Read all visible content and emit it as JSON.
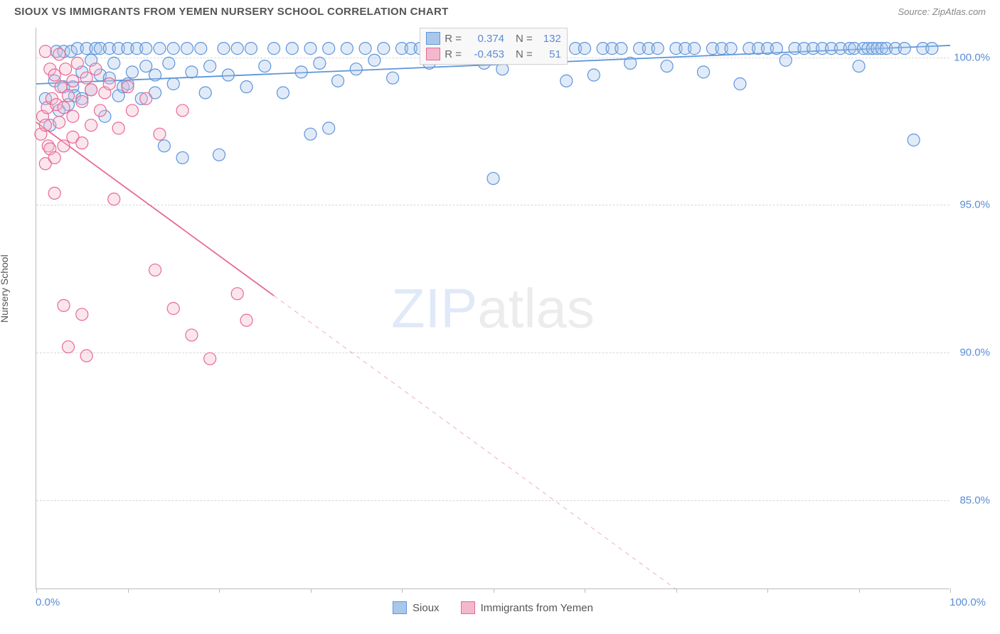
{
  "header": {
    "title": "SIOUX VS IMMIGRANTS FROM YEMEN NURSERY SCHOOL CORRELATION CHART",
    "source_label": "Source: ZipAtlas.com"
  },
  "chart": {
    "type": "scatter",
    "watermark": {
      "part1": "ZIP",
      "part2": "atlas",
      "fontsize": 78,
      "opacity": 0.18,
      "color": "#5b8cd6"
    },
    "ylabel": "Nursery School",
    "label_fontsize": 14,
    "label_color": "#555555",
    "background_color": "#ffffff",
    "grid_color": "#d8d8d8",
    "axis_color": "#bbbbbb",
    "tick_label_color": "#5b8cd6",
    "tick_label_fontsize": 15,
    "xlim": [
      0,
      100
    ],
    "ylim": [
      82,
      101
    ],
    "yticks": [
      85.0,
      90.0,
      95.0,
      100.0
    ],
    "ytick_labels": [
      "85.0%",
      "90.0%",
      "95.0%",
      "100.0%"
    ],
    "xticks": [
      0,
      10,
      20,
      30,
      40,
      50,
      60,
      70,
      80,
      90,
      100
    ],
    "xtick_left_label": "0.0%",
    "xtick_right_label": "100.0%",
    "marker_radius": 8.5,
    "marker_stroke_width": 1.2,
    "marker_fill_opacity": 0.35,
    "line_width": 1.8,
    "series": [
      {
        "name": "Sioux",
        "color": "#5e95db",
        "fill": "#a9c7ea",
        "R": "0.374",
        "N": "132",
        "trend": {
          "x1": 0,
          "y1": 99.1,
          "x2": 100,
          "y2": 100.4,
          "dash_after_x": null
        },
        "points": [
          [
            1,
            98.6
          ],
          [
            1.5,
            97.7
          ],
          [
            2,
            99.2
          ],
          [
            2.2,
            100.2
          ],
          [
            2.5,
            98.2
          ],
          [
            3,
            100.2
          ],
          [
            3,
            99.0
          ],
          [
            3.5,
            98.4
          ],
          [
            3.8,
            100.2
          ],
          [
            4,
            99.0
          ],
          [
            4.2,
            98.7
          ],
          [
            4.5,
            100.3
          ],
          [
            5,
            99.5
          ],
          [
            5,
            98.6
          ],
          [
            5.5,
            100.3
          ],
          [
            6,
            98.9
          ],
          [
            6,
            99.9
          ],
          [
            6.5,
            100.3
          ],
          [
            7,
            99.4
          ],
          [
            7,
            100.3
          ],
          [
            7.5,
            98.0
          ],
          [
            8,
            100.3
          ],
          [
            8,
            99.3
          ],
          [
            8.5,
            99.8
          ],
          [
            9,
            100.3
          ],
          [
            9,
            98.7
          ],
          [
            9.5,
            99.0
          ],
          [
            10,
            100.3
          ],
          [
            10,
            99.1
          ],
          [
            10.5,
            99.5
          ],
          [
            11,
            100.3
          ],
          [
            11.5,
            98.6
          ],
          [
            12,
            99.7
          ],
          [
            12,
            100.3
          ],
          [
            13,
            99.4
          ],
          [
            13,
            98.8
          ],
          [
            13.5,
            100.3
          ],
          [
            14,
            97.0
          ],
          [
            14.5,
            99.8
          ],
          [
            15,
            100.3
          ],
          [
            15,
            99.1
          ],
          [
            16,
            96.6
          ],
          [
            16.5,
            100.3
          ],
          [
            17,
            99.5
          ],
          [
            18,
            100.3
          ],
          [
            18.5,
            98.8
          ],
          [
            19,
            99.7
          ],
          [
            20,
            96.7
          ],
          [
            20.5,
            100.3
          ],
          [
            21,
            99.4
          ],
          [
            22,
            100.3
          ],
          [
            23,
            99.0
          ],
          [
            23.5,
            100.3
          ],
          [
            25,
            99.7
          ],
          [
            26,
            100.3
          ],
          [
            27,
            98.8
          ],
          [
            28,
            100.3
          ],
          [
            29,
            99.5
          ],
          [
            30,
            97.4
          ],
          [
            30,
            100.3
          ],
          [
            31,
            99.8
          ],
          [
            32,
            100.3
          ],
          [
            32,
            97.6
          ],
          [
            33,
            99.2
          ],
          [
            34,
            100.3
          ],
          [
            35,
            99.6
          ],
          [
            36,
            100.3
          ],
          [
            37,
            99.9
          ],
          [
            38,
            100.3
          ],
          [
            39,
            99.3
          ],
          [
            40,
            100.3
          ],
          [
            41,
            100.3
          ],
          [
            42,
            100.3
          ],
          [
            43,
            99.8
          ],
          [
            44,
            100.3
          ],
          [
            45,
            100.3
          ],
          [
            46,
            100.3
          ],
          [
            48,
            100.3
          ],
          [
            49,
            99.8
          ],
          [
            50,
            100.3
          ],
          [
            50,
            95.9
          ],
          [
            51,
            99.6
          ],
          [
            52,
            100.3
          ],
          [
            53,
            100.3
          ],
          [
            54,
            100.3
          ],
          [
            55,
            100.3
          ],
          [
            56,
            100.3
          ],
          [
            58,
            99.2
          ],
          [
            59,
            100.3
          ],
          [
            60,
            100.3
          ],
          [
            61,
            99.4
          ],
          [
            62,
            100.3
          ],
          [
            63,
            100.3
          ],
          [
            64,
            100.3
          ],
          [
            65,
            99.8
          ],
          [
            66,
            100.3
          ],
          [
            67,
            100.3
          ],
          [
            68,
            100.3
          ],
          [
            69,
            99.7
          ],
          [
            70,
            100.3
          ],
          [
            71,
            100.3
          ],
          [
            72,
            100.3
          ],
          [
            73,
            99.5
          ],
          [
            74,
            100.3
          ],
          [
            75,
            100.3
          ],
          [
            76,
            100.3
          ],
          [
            77,
            99.1
          ],
          [
            78,
            100.3
          ],
          [
            79,
            100.3
          ],
          [
            80,
            100.3
          ],
          [
            81,
            100.3
          ],
          [
            82,
            99.9
          ],
          [
            83,
            100.3
          ],
          [
            84,
            100.3
          ],
          [
            85,
            100.3
          ],
          [
            86,
            100.3
          ],
          [
            87,
            100.3
          ],
          [
            88,
            100.3
          ],
          [
            89,
            100.3
          ],
          [
            89.5,
            100.3
          ],
          [
            90,
            99.7
          ],
          [
            90.5,
            100.3
          ],
          [
            91,
            100.3
          ],
          [
            91.5,
            100.3
          ],
          [
            92,
            100.3
          ],
          [
            92.5,
            100.3
          ],
          [
            93,
            100.3
          ],
          [
            94,
            100.3
          ],
          [
            95,
            100.3
          ],
          [
            96,
            97.2
          ],
          [
            97,
            100.3
          ],
          [
            98,
            100.3
          ]
        ]
      },
      {
        "name": "Immigrants from Yemen",
        "color": "#e86a94",
        "fill": "#f3b8ce",
        "R": "-0.453",
        "N": "51",
        "trend": {
          "x1": 0,
          "y1": 97.8,
          "x2": 70,
          "y2": 82.0,
          "dash_after_x": 26
        },
        "points": [
          [
            0.5,
            97.4
          ],
          [
            0.7,
            98.0
          ],
          [
            1,
            100.2
          ],
          [
            1,
            97.7
          ],
          [
            1,
            96.4
          ],
          [
            1.2,
            98.3
          ],
          [
            1.3,
            97.0
          ],
          [
            1.5,
            99.6
          ],
          [
            1.5,
            96.9
          ],
          [
            1.7,
            98.6
          ],
          [
            2,
            99.4
          ],
          [
            2,
            96.6
          ],
          [
            2,
            95.4
          ],
          [
            2.2,
            98.4
          ],
          [
            2.5,
            97.8
          ],
          [
            2.5,
            100.1
          ],
          [
            2.7,
            99.0
          ],
          [
            3,
            97.0
          ],
          [
            3,
            98.3
          ],
          [
            3,
            91.6
          ],
          [
            3.2,
            99.6
          ],
          [
            3.5,
            98.7
          ],
          [
            3.5,
            90.2
          ],
          [
            4,
            99.2
          ],
          [
            4,
            97.3
          ],
          [
            4,
            98.0
          ],
          [
            4.5,
            99.8
          ],
          [
            5,
            98.5
          ],
          [
            5,
            97.1
          ],
          [
            5,
            91.3
          ],
          [
            5.5,
            99.3
          ],
          [
            5.5,
            89.9
          ],
          [
            6,
            97.7
          ],
          [
            6,
            98.9
          ],
          [
            6.5,
            99.6
          ],
          [
            7,
            98.2
          ],
          [
            7.5,
            98.8
          ],
          [
            8,
            99.1
          ],
          [
            8.5,
            95.2
          ],
          [
            9,
            97.6
          ],
          [
            10,
            99.0
          ],
          [
            10.5,
            98.2
          ],
          [
            12,
            98.6
          ],
          [
            13,
            92.8
          ],
          [
            13.5,
            97.4
          ],
          [
            15,
            91.5
          ],
          [
            16,
            98.2
          ],
          [
            17,
            90.6
          ],
          [
            19,
            89.8
          ],
          [
            22,
            92.0
          ],
          [
            23,
            91.1
          ]
        ]
      }
    ],
    "legend_top": {
      "bg": "#f8f8f8",
      "border": "#d0d0d0",
      "label_R": "R =",
      "label_N": "N ="
    },
    "legend_bottom": [
      {
        "label": "Sioux",
        "color": "#5e95db",
        "fill": "#a9c7ea"
      },
      {
        "label": "Immigrants from Yemen",
        "color": "#e86a94",
        "fill": "#f3b8ce"
      }
    ]
  }
}
